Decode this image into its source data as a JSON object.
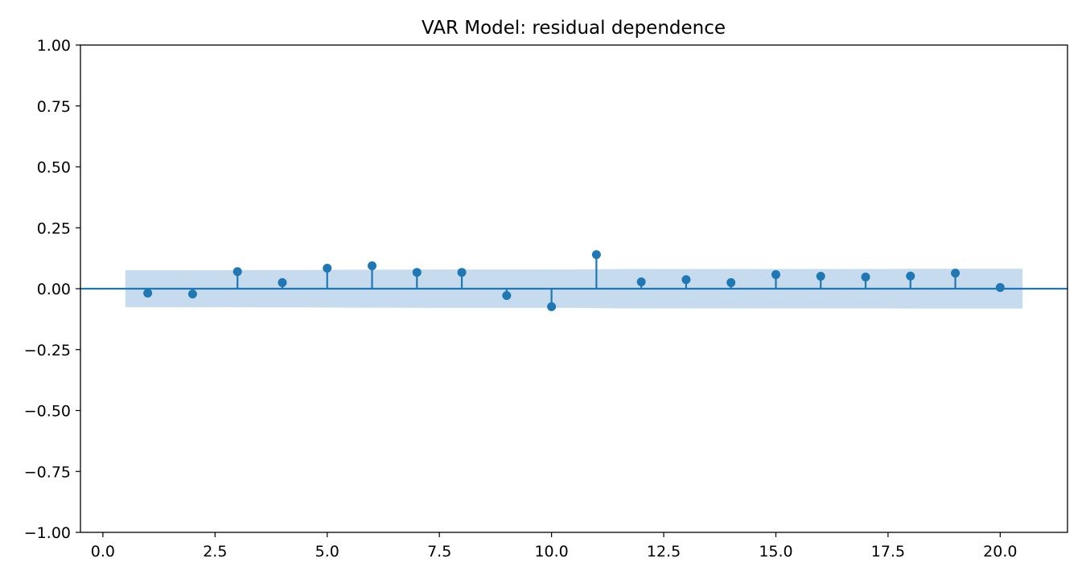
{
  "chart_data": {
    "type": "scatter",
    "subtype": "stem-autocorrelation",
    "title": "VAR Model: residual dependence",
    "xlabel": "",
    "ylabel": "",
    "xlim": [
      -0.5,
      21.5
    ],
    "ylim": [
      -1.0,
      1.0
    ],
    "grid": false,
    "legend": "none",
    "x_ticks": [
      0.0,
      2.5,
      5.0,
      7.5,
      10.0,
      12.5,
      15.0,
      17.5,
      20.0
    ],
    "x_tick_labels": [
      "0.0",
      "2.5",
      "5.0",
      "7.5",
      "10.0",
      "12.5",
      "15.0",
      "17.5",
      "20.0"
    ],
    "y_ticks": [
      -1.0,
      -0.75,
      -0.5,
      -0.25,
      0.0,
      0.25,
      0.5,
      0.75,
      1.0
    ],
    "y_tick_labels": [
      "−1.00",
      "−0.75",
      "−0.50",
      "−0.25",
      "0.00",
      "0.25",
      "0.50",
      "0.75",
      "1.00"
    ],
    "x": [
      1,
      2,
      3,
      4,
      5,
      6,
      7,
      8,
      9,
      10,
      11,
      12,
      13,
      14,
      15,
      16,
      17,
      18,
      19,
      20
    ],
    "values": [
      -0.018,
      -0.022,
      0.07,
      0.025,
      0.084,
      0.094,
      0.067,
      0.067,
      -0.028,
      -0.074,
      0.14,
      0.028,
      0.037,
      0.025,
      0.058,
      0.051,
      0.048,
      0.052,
      0.064,
      0.005
    ],
    "confidence_band": {
      "x": [
        0.5,
        1.5,
        2.5,
        3.5,
        4.5,
        5.5,
        6.5,
        7.5,
        8.5,
        9.5,
        10.5,
        11.5,
        12.5,
        13.5,
        14.5,
        15.5,
        16.5,
        17.5,
        18.5,
        19.5,
        20.5
      ],
      "upper": [
        0.076,
        0.076,
        0.076,
        0.077,
        0.077,
        0.078,
        0.078,
        0.079,
        0.079,
        0.079,
        0.079,
        0.081,
        0.081,
        0.081,
        0.081,
        0.081,
        0.081,
        0.081,
        0.082,
        0.082,
        0.082
      ],
      "lower": [
        -0.076,
        -0.076,
        -0.076,
        -0.077,
        -0.077,
        -0.078,
        -0.078,
        -0.079,
        -0.079,
        -0.079,
        -0.079,
        -0.081,
        -0.081,
        -0.081,
        -0.081,
        -0.081,
        -0.081,
        -0.081,
        -0.082,
        -0.082,
        -0.082
      ]
    },
    "colors": {
      "stem": "#1f77b4",
      "band": "#c6dbee",
      "zero_line": "#1f77b4",
      "axes": "#000000"
    }
  }
}
